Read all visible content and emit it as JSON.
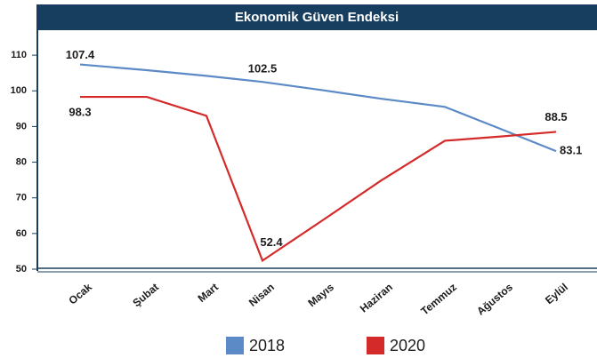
{
  "chart_data": {
    "type": "line",
    "title": "Ekonomik Güven Endeksi",
    "categories": [
      "Ocak",
      "Şubat",
      "Mart",
      "Nisan",
      "Mayıs",
      "Haziran",
      "Temmuz",
      "Ağustos",
      "Eylül"
    ],
    "series": [
      {
        "name": "2018",
        "color": "#5b8ac6",
        "values": [
          107.4,
          105.8,
          104.2,
          102.5,
          100.2,
          97.8,
          95.5,
          89.3,
          83.1
        ],
        "value_labels": [
          "107.4",
          null,
          null,
          "102.5",
          null,
          null,
          null,
          null,
          "83.1"
        ]
      },
      {
        "name": "2020",
        "color": "#d42a2a",
        "values": [
          98.3,
          98.3,
          93,
          52.4,
          63.6,
          74.8,
          86,
          87.2,
          88.5
        ],
        "value_labels": [
          "98.3",
          null,
          null,
          "52.4",
          null,
          null,
          null,
          null,
          "88.5"
        ]
      }
    ],
    "ylim": [
      50,
      117
    ],
    "yticks": [
      50,
      60,
      70,
      80,
      90,
      100,
      110
    ],
    "grid": false
  }
}
